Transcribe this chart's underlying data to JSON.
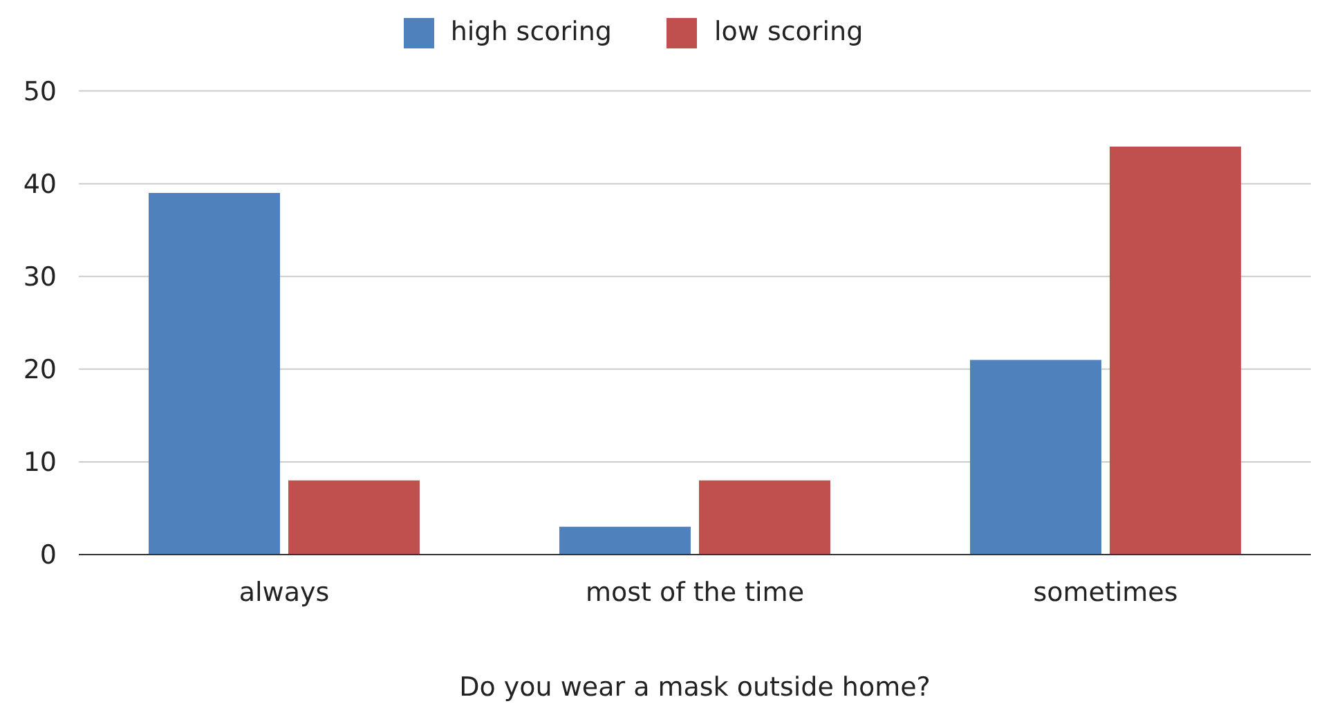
{
  "chart_data": {
    "type": "bar",
    "xlabel": "Do you wear a mask outside home?",
    "categories": [
      "always",
      "most of the time",
      "sometimes"
    ],
    "series": [
      {
        "name": "high scoring",
        "color": "#4f81bd",
        "values": [
          39,
          3,
          21
        ]
      },
      {
        "name": "low scoring",
        "color": "#c0504d",
        "values": [
          8,
          8,
          44
        ]
      }
    ],
    "ylim": [
      0,
      50
    ],
    "yticks": [
      0,
      10,
      20,
      30,
      40,
      50
    ],
    "grid": "y",
    "legend": "top"
  }
}
